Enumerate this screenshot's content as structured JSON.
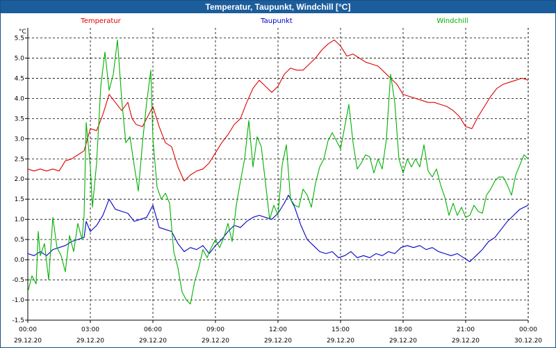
{
  "window": {
    "title": "Temperatur, Taupunkt, Windchill [°C]"
  },
  "chart_data": {
    "type": "line",
    "title": "Temperatur, Taupunkt, Windchill [°C]",
    "ylabel": "°C",
    "xlabel": "",
    "ylim": [
      -1.5,
      5.75
    ],
    "xlim": [
      0,
      24
    ],
    "y_ticks": [
      "-1.5",
      "-1.0",
      "-0.5",
      "0.0",
      "0.5",
      "1.0",
      "1.5",
      "2.0",
      "2.5",
      "3.0",
      "3.5",
      "4.0",
      "4.5",
      "5.0",
      "5.5"
    ],
    "x_ticks": [
      {
        "time": "00:00",
        "date": "29.12.20"
      },
      {
        "time": "03:00",
        "date": "29.12.20"
      },
      {
        "time": "06:00",
        "date": "29.12.20"
      },
      {
        "time": "09:00",
        "date": "29.12.20"
      },
      {
        "time": "12:00",
        "date": "29.12.20"
      },
      {
        "time": "15:00",
        "date": "29.12.20"
      },
      {
        "time": "18:00",
        "date": "29.12.20"
      },
      {
        "time": "21:00",
        "date": "29.12.20"
      },
      {
        "time": "00:00",
        "date": "30.12.20"
      }
    ],
    "grid": true,
    "legend_position": "top",
    "series": [
      {
        "name": "Temperatur",
        "color": "#e00000",
        "points": [
          [
            0,
            2.25
          ],
          [
            0.3,
            2.2
          ],
          [
            0.6,
            2.25
          ],
          [
            0.9,
            2.2
          ],
          [
            1.2,
            2.25
          ],
          [
            1.5,
            2.2
          ],
          [
            1.8,
            2.45
          ],
          [
            2.1,
            2.5
          ],
          [
            2.4,
            2.6
          ],
          [
            2.7,
            2.7
          ],
          [
            3.0,
            3.25
          ],
          [
            3.3,
            3.2
          ],
          [
            3.6,
            3.6
          ],
          [
            3.9,
            4.1
          ],
          [
            4.2,
            3.9
          ],
          [
            4.5,
            3.7
          ],
          [
            4.8,
            3.9
          ],
          [
            5.0,
            3.5
          ],
          [
            5.2,
            3.35
          ],
          [
            5.5,
            3.3
          ],
          [
            5.8,
            3.6
          ],
          [
            6.0,
            3.8
          ],
          [
            6.3,
            3.3
          ],
          [
            6.6,
            2.9
          ],
          [
            6.9,
            2.8
          ],
          [
            7.2,
            2.3
          ],
          [
            7.5,
            1.95
          ],
          [
            7.8,
            2.1
          ],
          [
            8.1,
            2.2
          ],
          [
            8.4,
            2.25
          ],
          [
            8.7,
            2.4
          ],
          [
            9.0,
            2.65
          ],
          [
            9.3,
            2.9
          ],
          [
            9.6,
            3.1
          ],
          [
            9.9,
            3.35
          ],
          [
            10.2,
            3.5
          ],
          [
            10.5,
            3.9
          ],
          [
            10.8,
            4.25
          ],
          [
            11.1,
            4.45
          ],
          [
            11.4,
            4.3
          ],
          [
            11.7,
            4.15
          ],
          [
            12.0,
            4.3
          ],
          [
            12.3,
            4.6
          ],
          [
            12.6,
            4.75
          ],
          [
            12.9,
            4.7
          ],
          [
            13.2,
            4.7
          ],
          [
            13.5,
            4.85
          ],
          [
            13.8,
            5.0
          ],
          [
            14.1,
            5.2
          ],
          [
            14.4,
            5.35
          ],
          [
            14.7,
            5.45
          ],
          [
            15.0,
            5.3
          ],
          [
            15.3,
            5.05
          ],
          [
            15.6,
            5.1
          ],
          [
            15.9,
            5.0
          ],
          [
            16.2,
            4.9
          ],
          [
            16.5,
            4.85
          ],
          [
            16.8,
            4.8
          ],
          [
            17.1,
            4.65
          ],
          [
            17.4,
            4.5
          ],
          [
            17.7,
            4.35
          ],
          [
            18.0,
            4.1
          ],
          [
            18.3,
            4.05
          ],
          [
            18.6,
            4.0
          ],
          [
            18.9,
            3.95
          ],
          [
            19.2,
            3.9
          ],
          [
            19.5,
            3.9
          ],
          [
            19.8,
            3.85
          ],
          [
            20.1,
            3.8
          ],
          [
            20.4,
            3.7
          ],
          [
            20.7,
            3.55
          ],
          [
            21.0,
            3.3
          ],
          [
            21.3,
            3.25
          ],
          [
            21.6,
            3.55
          ],
          [
            21.9,
            3.8
          ],
          [
            22.2,
            4.05
          ],
          [
            22.5,
            4.25
          ],
          [
            22.8,
            4.35
          ],
          [
            23.1,
            4.4
          ],
          [
            23.4,
            4.45
          ],
          [
            23.7,
            4.5
          ],
          [
            24.0,
            4.45
          ]
        ]
      },
      {
        "name": "Taupunkt",
        "color": "#0000c8",
        "points": [
          [
            0,
            0.15
          ],
          [
            0.3,
            0.1
          ],
          [
            0.6,
            0.2
          ],
          [
            0.9,
            0.1
          ],
          [
            1.2,
            0.25
          ],
          [
            1.5,
            0.3
          ],
          [
            1.8,
            0.35
          ],
          [
            2.1,
            0.45
          ],
          [
            2.4,
            0.5
          ],
          [
            2.7,
            0.55
          ],
          [
            2.8,
            0.95
          ],
          [
            3.0,
            0.7
          ],
          [
            3.3,
            0.85
          ],
          [
            3.6,
            1.1
          ],
          [
            3.9,
            1.5
          ],
          [
            4.2,
            1.25
          ],
          [
            4.5,
            1.2
          ],
          [
            4.8,
            1.15
          ],
          [
            5.1,
            0.95
          ],
          [
            5.4,
            1.0
          ],
          [
            5.7,
            1.05
          ],
          [
            6.0,
            1.35
          ],
          [
            6.3,
            0.8
          ],
          [
            6.6,
            0.75
          ],
          [
            6.9,
            0.7
          ],
          [
            7.2,
            0.4
          ],
          [
            7.5,
            0.2
          ],
          [
            7.8,
            0.3
          ],
          [
            8.1,
            0.25
          ],
          [
            8.4,
            0.35
          ],
          [
            8.7,
            0.15
          ],
          [
            9.0,
            0.35
          ],
          [
            9.3,
            0.5
          ],
          [
            9.6,
            0.7
          ],
          [
            9.9,
            0.85
          ],
          [
            10.2,
            0.8
          ],
          [
            10.5,
            0.95
          ],
          [
            10.8,
            1.05
          ],
          [
            11.1,
            1.1
          ],
          [
            11.4,
            1.05
          ],
          [
            11.7,
            1.0
          ],
          [
            12.0,
            1.15
          ],
          [
            12.3,
            1.4
          ],
          [
            12.5,
            1.6
          ],
          [
            12.8,
            1.3
          ],
          [
            13.1,
            0.85
          ],
          [
            13.4,
            0.5
          ],
          [
            13.7,
            0.35
          ],
          [
            14.0,
            0.2
          ],
          [
            14.3,
            0.15
          ],
          [
            14.6,
            0.2
          ],
          [
            14.9,
            0.05
          ],
          [
            15.2,
            0.1
          ],
          [
            15.5,
            0.2
          ],
          [
            15.8,
            0.05
          ],
          [
            16.1,
            0.1
          ],
          [
            16.4,
            0.05
          ],
          [
            16.7,
            0.15
          ],
          [
            17.0,
            0.1
          ],
          [
            17.3,
            0.2
          ],
          [
            17.6,
            0.15
          ],
          [
            17.9,
            0.3
          ],
          [
            18.2,
            0.35
          ],
          [
            18.5,
            0.3
          ],
          [
            18.8,
            0.35
          ],
          [
            19.1,
            0.25
          ],
          [
            19.4,
            0.3
          ],
          [
            19.7,
            0.2
          ],
          [
            20.0,
            0.15
          ],
          [
            20.3,
            0.1
          ],
          [
            20.6,
            0.15
          ],
          [
            20.9,
            0.05
          ],
          [
            21.2,
            -0.05
          ],
          [
            21.5,
            0.1
          ],
          [
            21.8,
            0.25
          ],
          [
            22.1,
            0.45
          ],
          [
            22.4,
            0.55
          ],
          [
            22.7,
            0.75
          ],
          [
            23.0,
            0.95
          ],
          [
            23.3,
            1.1
          ],
          [
            23.6,
            1.25
          ],
          [
            24.0,
            1.35
          ]
        ]
      },
      {
        "name": "Windchill",
        "color": "#00b000",
        "points": [
          [
            0,
            -0.8
          ],
          [
            0.2,
            -0.4
          ],
          [
            0.4,
            -0.6
          ],
          [
            0.5,
            0.7
          ],
          [
            0.6,
            0.1
          ],
          [
            0.8,
            0.4
          ],
          [
            1.0,
            -0.5
          ],
          [
            1.2,
            1.05
          ],
          [
            1.4,
            0.3
          ],
          [
            1.6,
            0.1
          ],
          [
            1.8,
            -0.3
          ],
          [
            2.0,
            0.6
          ],
          [
            2.2,
            0.2
          ],
          [
            2.4,
            0.9
          ],
          [
            2.6,
            0.5
          ],
          [
            2.7,
            1.1
          ],
          [
            2.8,
            3.4
          ],
          [
            3.0,
            2.3
          ],
          [
            3.1,
            1.3
          ],
          [
            3.3,
            2.4
          ],
          [
            3.5,
            4.3
          ],
          [
            3.7,
            5.15
          ],
          [
            3.9,
            4.2
          ],
          [
            4.1,
            4.6
          ],
          [
            4.3,
            5.45
          ],
          [
            4.5,
            4.0
          ],
          [
            4.7,
            2.9
          ],
          [
            4.9,
            3.05
          ],
          [
            5.1,
            2.35
          ],
          [
            5.3,
            1.7
          ],
          [
            5.5,
            2.9
          ],
          [
            5.7,
            3.9
          ],
          [
            5.9,
            4.7
          ],
          [
            6.0,
            3.0
          ],
          [
            6.2,
            1.8
          ],
          [
            6.4,
            1.5
          ],
          [
            6.6,
            1.65
          ],
          [
            6.8,
            1.4
          ],
          [
            7.0,
            0.2
          ],
          [
            7.2,
            -0.2
          ],
          [
            7.4,
            -0.8
          ],
          [
            7.6,
            -1.0
          ],
          [
            7.8,
            -1.1
          ],
          [
            8.0,
            -0.55
          ],
          [
            8.2,
            -0.2
          ],
          [
            8.4,
            0.25
          ],
          [
            8.6,
            0.05
          ],
          [
            8.8,
            0.3
          ],
          [
            9.0,
            0.5
          ],
          [
            9.2,
            0.3
          ],
          [
            9.4,
            0.55
          ],
          [
            9.6,
            0.9
          ],
          [
            9.8,
            0.45
          ],
          [
            10.0,
            1.35
          ],
          [
            10.2,
            1.95
          ],
          [
            10.4,
            2.5
          ],
          [
            10.6,
            3.45
          ],
          [
            10.8,
            2.3
          ],
          [
            11.0,
            3.05
          ],
          [
            11.2,
            2.8
          ],
          [
            11.4,
            1.9
          ],
          [
            11.6,
            1.0
          ],
          [
            11.8,
            1.35
          ],
          [
            12.0,
            1.1
          ],
          [
            12.2,
            2.35
          ],
          [
            12.4,
            2.85
          ],
          [
            12.6,
            1.5
          ],
          [
            12.8,
            1.35
          ],
          [
            13.0,
            1.3
          ],
          [
            13.2,
            1.75
          ],
          [
            13.4,
            1.6
          ],
          [
            13.6,
            1.3
          ],
          [
            13.8,
            1.9
          ],
          [
            14.0,
            2.3
          ],
          [
            14.2,
            2.5
          ],
          [
            14.4,
            2.95
          ],
          [
            14.6,
            3.15
          ],
          [
            14.8,
            2.95
          ],
          [
            15.0,
            2.75
          ],
          [
            15.2,
            3.3
          ],
          [
            15.4,
            3.85
          ],
          [
            15.6,
            2.9
          ],
          [
            15.8,
            2.25
          ],
          [
            16.0,
            2.4
          ],
          [
            16.2,
            2.6
          ],
          [
            16.4,
            2.55
          ],
          [
            16.6,
            2.15
          ],
          [
            16.8,
            2.5
          ],
          [
            17.0,
            2.25
          ],
          [
            17.2,
            3.0
          ],
          [
            17.4,
            4.6
          ],
          [
            17.6,
            3.9
          ],
          [
            17.8,
            2.5
          ],
          [
            18.0,
            2.15
          ],
          [
            18.2,
            2.5
          ],
          [
            18.4,
            2.3
          ],
          [
            18.6,
            2.5
          ],
          [
            18.8,
            2.3
          ],
          [
            19.0,
            2.85
          ],
          [
            19.2,
            2.2
          ],
          [
            19.4,
            2.05
          ],
          [
            19.6,
            2.25
          ],
          [
            19.8,
            1.85
          ],
          [
            20.0,
            1.55
          ],
          [
            20.2,
            1.1
          ],
          [
            20.4,
            1.4
          ],
          [
            20.6,
            1.1
          ],
          [
            20.8,
            1.3
          ],
          [
            21.0,
            1.05
          ],
          [
            21.2,
            1.1
          ],
          [
            21.4,
            1.35
          ],
          [
            21.6,
            1.2
          ],
          [
            21.8,
            1.15
          ],
          [
            22.0,
            1.6
          ],
          [
            22.2,
            1.75
          ],
          [
            22.4,
            1.95
          ],
          [
            22.6,
            2.05
          ],
          [
            22.8,
            2.05
          ],
          [
            23.0,
            1.85
          ],
          [
            23.2,
            1.6
          ],
          [
            23.4,
            2.1
          ],
          [
            23.6,
            2.35
          ],
          [
            23.8,
            2.6
          ],
          [
            24.0,
            2.5
          ]
        ]
      }
    ]
  }
}
